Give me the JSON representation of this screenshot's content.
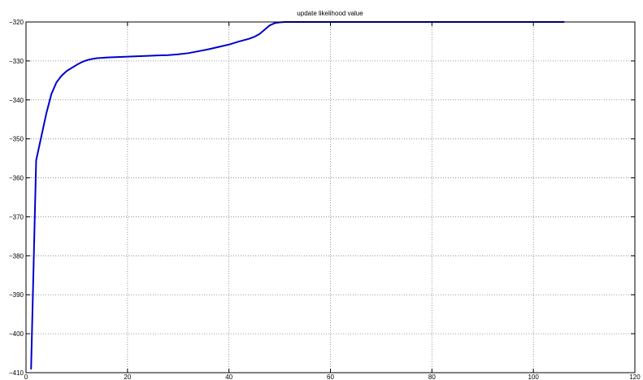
{
  "chart_data": {
    "type": "line",
    "title": "update likelihood value",
    "xlabel": "",
    "ylabel": "",
    "xlim": [
      0,
      120
    ],
    "ylim": [
      -410,
      -320
    ],
    "grid": true,
    "x_ticks": [
      0,
      20,
      40,
      60,
      80,
      100,
      120
    ],
    "y_ticks": [
      -320,
      -330,
      -340,
      -350,
      -360,
      -370,
      -380,
      -390,
      -400,
      -410
    ],
    "x_tick_labels": [
      "0",
      "20",
      "40",
      "60",
      "80",
      "100",
      "120"
    ],
    "y_tick_labels": [
      "−320",
      "−330",
      "−340",
      "−350",
      "−360",
      "−370",
      "−380",
      "−390",
      "−400",
      "−410"
    ],
    "colors": {
      "line": "#0000cc",
      "grid": "#7f7f7f",
      "axis": "#000000"
    },
    "series": [
      {
        "x": [
          1,
          2,
          3,
          4,
          5,
          6,
          7,
          8,
          9,
          10,
          11,
          12,
          13,
          14,
          15,
          16,
          18,
          20,
          22,
          24,
          26,
          28,
          30,
          32,
          34,
          36,
          38,
          40,
          42,
          44,
          45,
          46,
          47,
          48,
          49,
          50,
          51,
          52,
          55,
          60,
          70,
          80,
          90,
          100,
          106
        ],
        "y": [
          -409,
          -355.5,
          -349.5,
          -343.5,
          -338.5,
          -335.5,
          -333.8,
          -332.6,
          -331.8,
          -331.0,
          -330.3,
          -329.8,
          -329.5,
          -329.3,
          -329.2,
          -329.1,
          -329.0,
          -328.9,
          -328.8,
          -328.7,
          -328.6,
          -328.5,
          -328.3,
          -328.0,
          -327.5,
          -327.0,
          -326.4,
          -325.8,
          -325.0,
          -324.3,
          -323.8,
          -323.1,
          -322.0,
          -320.9,
          -320.3,
          -320.1,
          -320.0,
          -320.0,
          -320.0,
          -320.0,
          -320.0,
          -320.0,
          -320.0,
          -320.0,
          -320.0
        ]
      }
    ]
  }
}
